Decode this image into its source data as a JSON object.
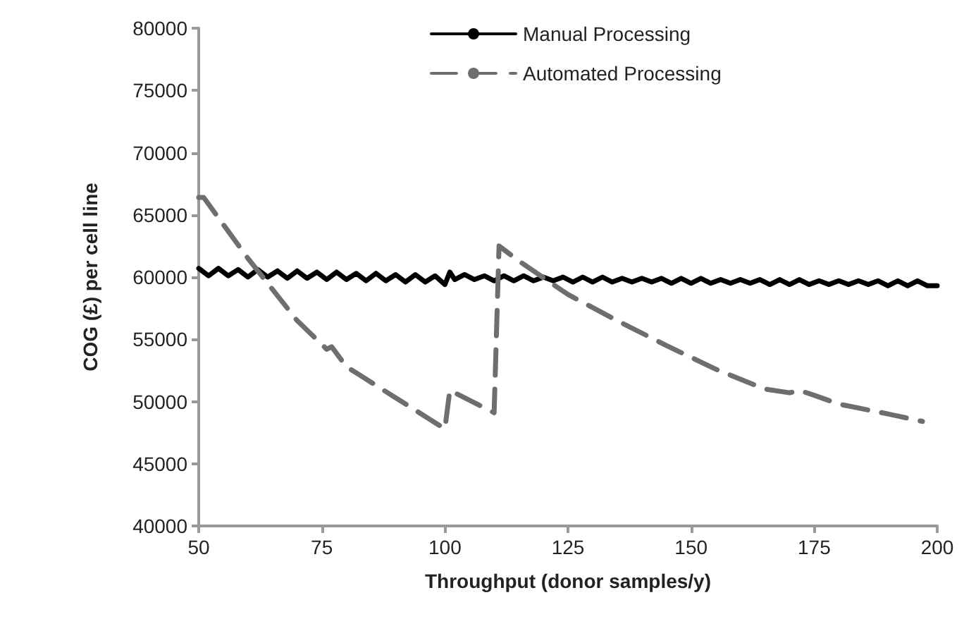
{
  "chart_data": {
    "type": "line",
    "xlabel": "Throughput (donor samples/y)",
    "ylabel": "COG (£) per cell line",
    "xlim": [
      50,
      200
    ],
    "xticks": [
      50,
      75,
      100,
      125,
      150,
      175,
      200
    ],
    "ylim": [
      40000,
      80000
    ],
    "yticks": [
      40000,
      45000,
      50000,
      55000,
      60000,
      65000,
      70000,
      75000,
      80000
    ],
    "grid": false,
    "legend": "top",
    "marker": "none",
    "series": [
      {
        "name": "Manual Processing",
        "color": "#000000",
        "line_style": "solid",
        "x": [
          50,
          52,
          54,
          56,
          58,
          60,
          62,
          64,
          66,
          68,
          70,
          72,
          74,
          76,
          78,
          80,
          82,
          84,
          86,
          88,
          90,
          92,
          94,
          96,
          98,
          100,
          101,
          102,
          104,
          106,
          108,
          110,
          112,
          114,
          116,
          118,
          120,
          122,
          124,
          126,
          128,
          130,
          132,
          134,
          136,
          138,
          140,
          142,
          144,
          146,
          148,
          150,
          152,
          154,
          156,
          158,
          160,
          162,
          164,
          166,
          168,
          170,
          172,
          174,
          176,
          178,
          180,
          182,
          184,
          186,
          188,
          190,
          192,
          194,
          196,
          198,
          200
        ],
        "values": [
          60700,
          60100,
          60700,
          60100,
          60600,
          60000,
          60600,
          60000,
          60500,
          59900,
          60500,
          59900,
          60400,
          59800,
          60400,
          59800,
          60300,
          59700,
          60300,
          59700,
          60200,
          59600,
          60200,
          59600,
          60100,
          59400,
          60400,
          59800,
          60200,
          59800,
          60100,
          59700,
          60100,
          59700,
          60100,
          59700,
          60000,
          59700,
          60000,
          59600,
          60000,
          59600,
          60000,
          59600,
          59900,
          59600,
          59900,
          59600,
          59900,
          59500,
          59900,
          59500,
          59900,
          59500,
          59800,
          59500,
          59800,
          59500,
          59800,
          59400,
          59800,
          59400,
          59800,
          59400,
          59700,
          59400,
          59700,
          59400,
          59700,
          59400,
          59700,
          59300,
          59700,
          59300,
          59700,
          59300,
          59300
        ]
      },
      {
        "name": "Automated Processing",
        "color": "#6e6e6e",
        "line_style": "dashed",
        "x": [
          50,
          51,
          60,
          70,
          76,
          77,
          80,
          90,
          100,
          101,
          110,
          111,
          115,
          125,
          135,
          145,
          155,
          165,
          170,
          172,
          175,
          180,
          190,
          197
        ],
        "values": [
          66400,
          66400,
          61500,
          56500,
          54200,
          54400,
          52800,
          50300,
          47800,
          50900,
          49100,
          62500,
          61300,
          58600,
          56500,
          54500,
          52600,
          51000,
          50700,
          50900,
          50500,
          49800,
          49000,
          48400
        ]
      }
    ]
  }
}
